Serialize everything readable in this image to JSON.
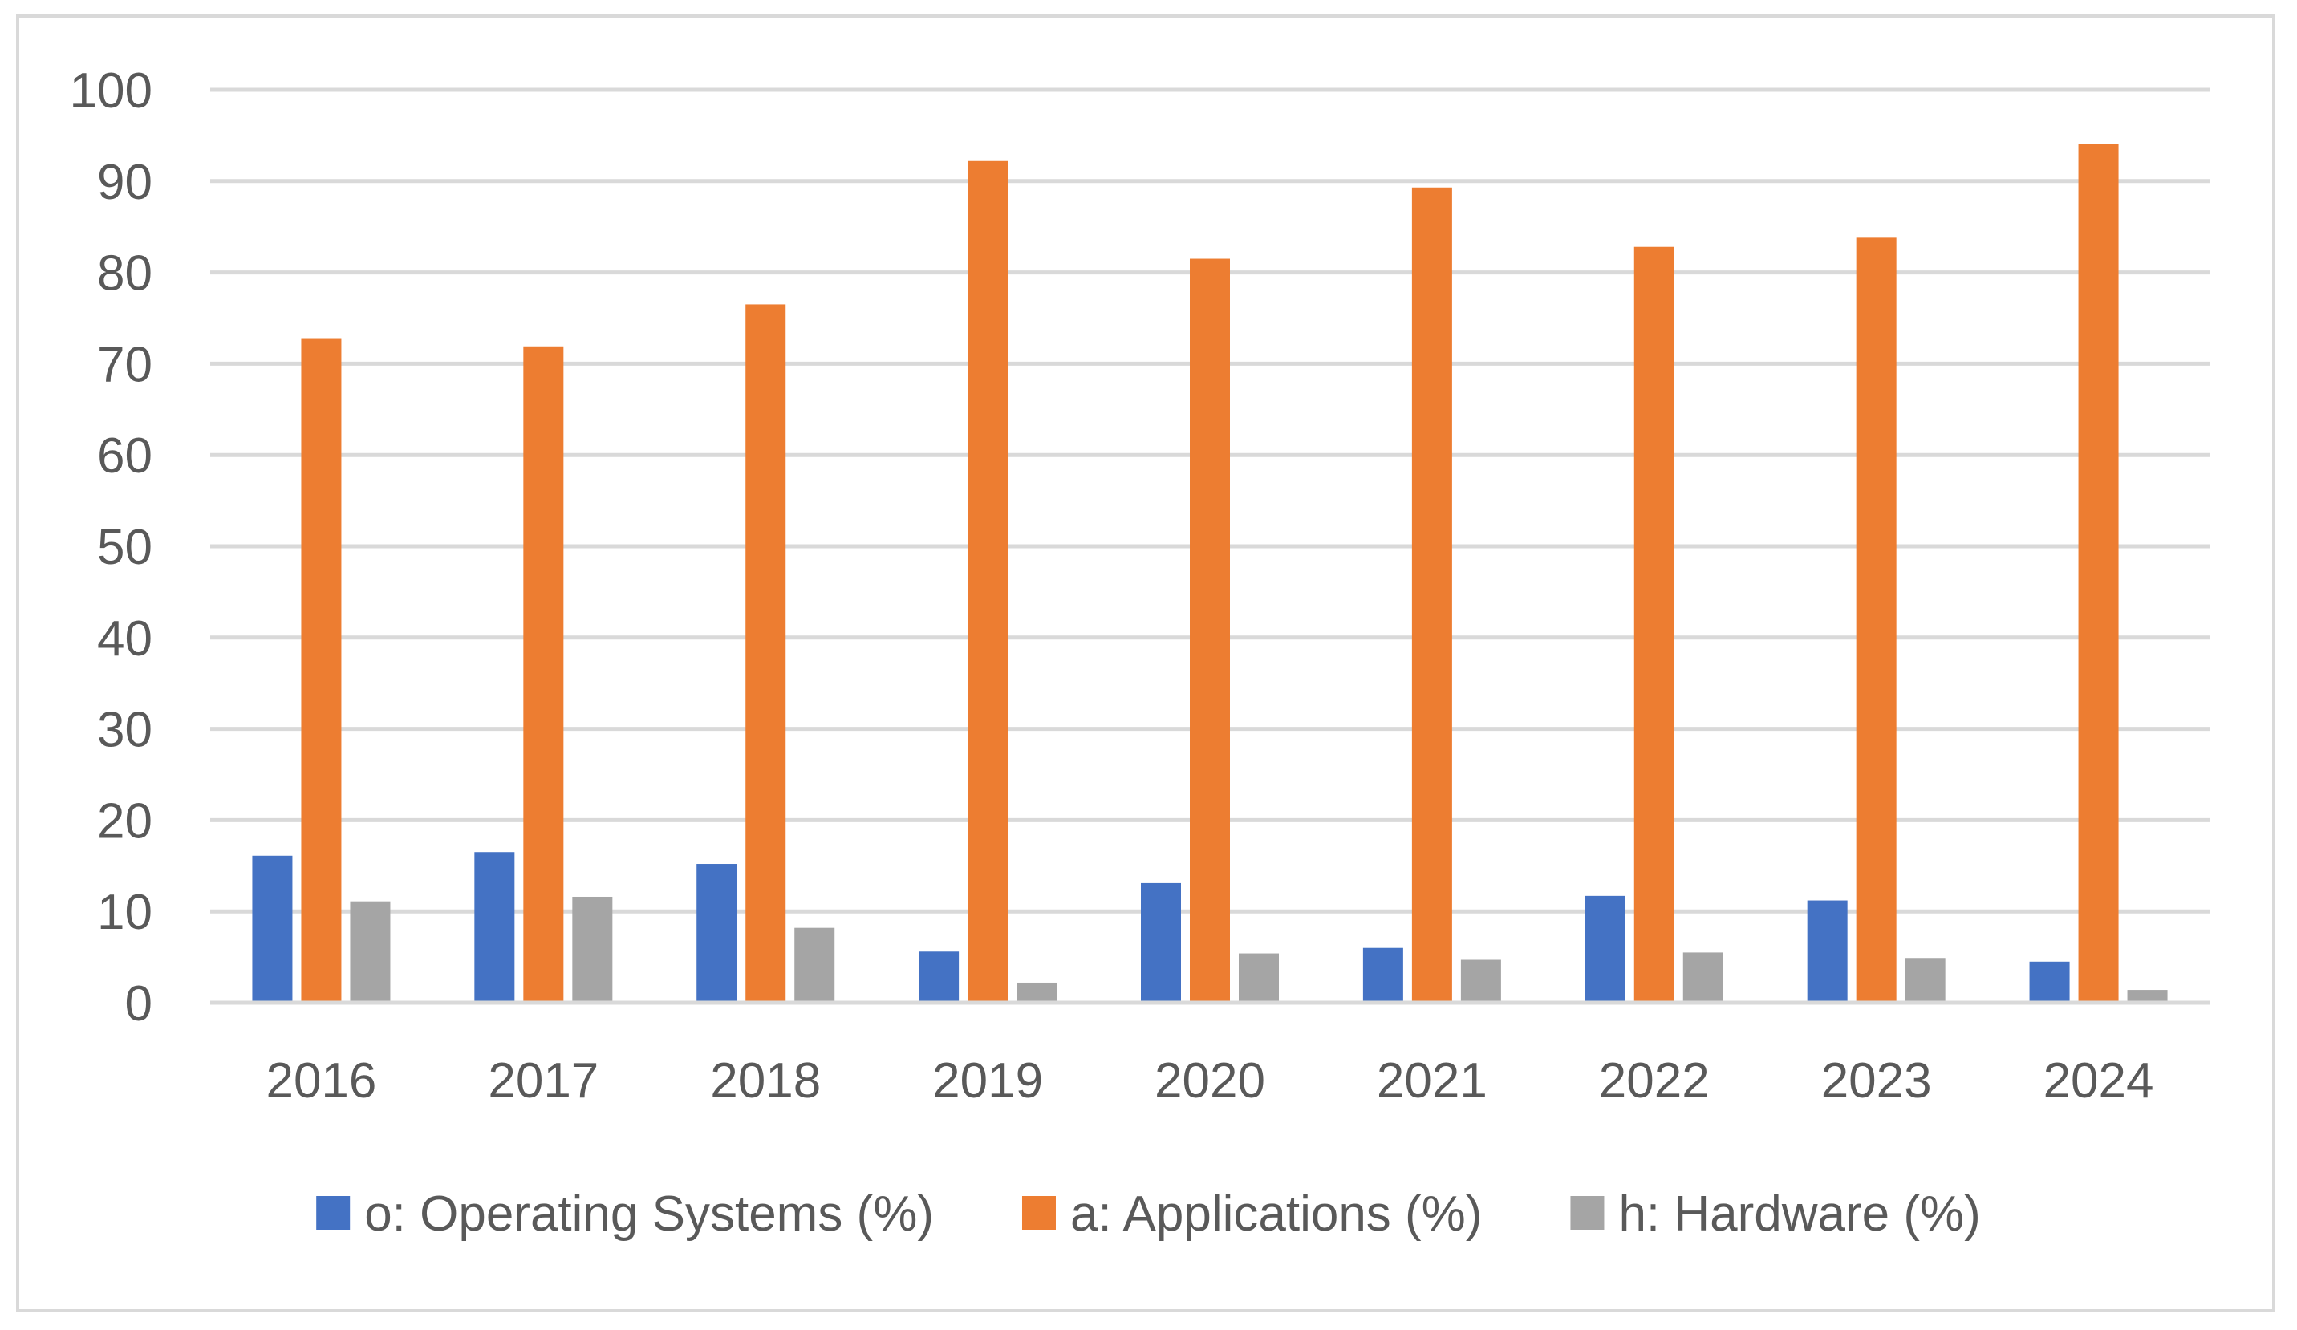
{
  "chart_data": {
    "type": "bar",
    "title": "",
    "xlabel": "",
    "ylabel": "",
    "ylim": [
      0,
      100
    ],
    "yticks": [
      0,
      10,
      20,
      30,
      40,
      50,
      60,
      70,
      80,
      90,
      100
    ],
    "ytick_labels": [
      "0",
      "10",
      "20",
      "30",
      "40",
      "50",
      "60",
      "70",
      "80",
      "90",
      "100"
    ],
    "grid": true,
    "legend_position": "bottom",
    "categories": [
      "2016",
      "2017",
      "2018",
      "2019",
      "2020",
      "2021",
      "2022",
      "2023",
      "2024"
    ],
    "series": [
      {
        "name": "o: Operating Systems (%)",
        "color": "#4472c4",
        "values": [
          16.1,
          16.5,
          15.2,
          5.6,
          13.1,
          6.0,
          11.7,
          11.2,
          4.5
        ]
      },
      {
        "name": "a: Applications (%)",
        "color": "#ed7d31",
        "values": [
          72.8,
          71.9,
          76.5,
          92.2,
          81.5,
          89.3,
          82.8,
          83.8,
          94.1
        ]
      },
      {
        "name": "h: Hardware (%)",
        "color": "#a5a5a5",
        "values": [
          11.1,
          11.6,
          8.2,
          2.2,
          5.4,
          4.7,
          5.5,
          4.9,
          1.4
        ]
      }
    ]
  }
}
